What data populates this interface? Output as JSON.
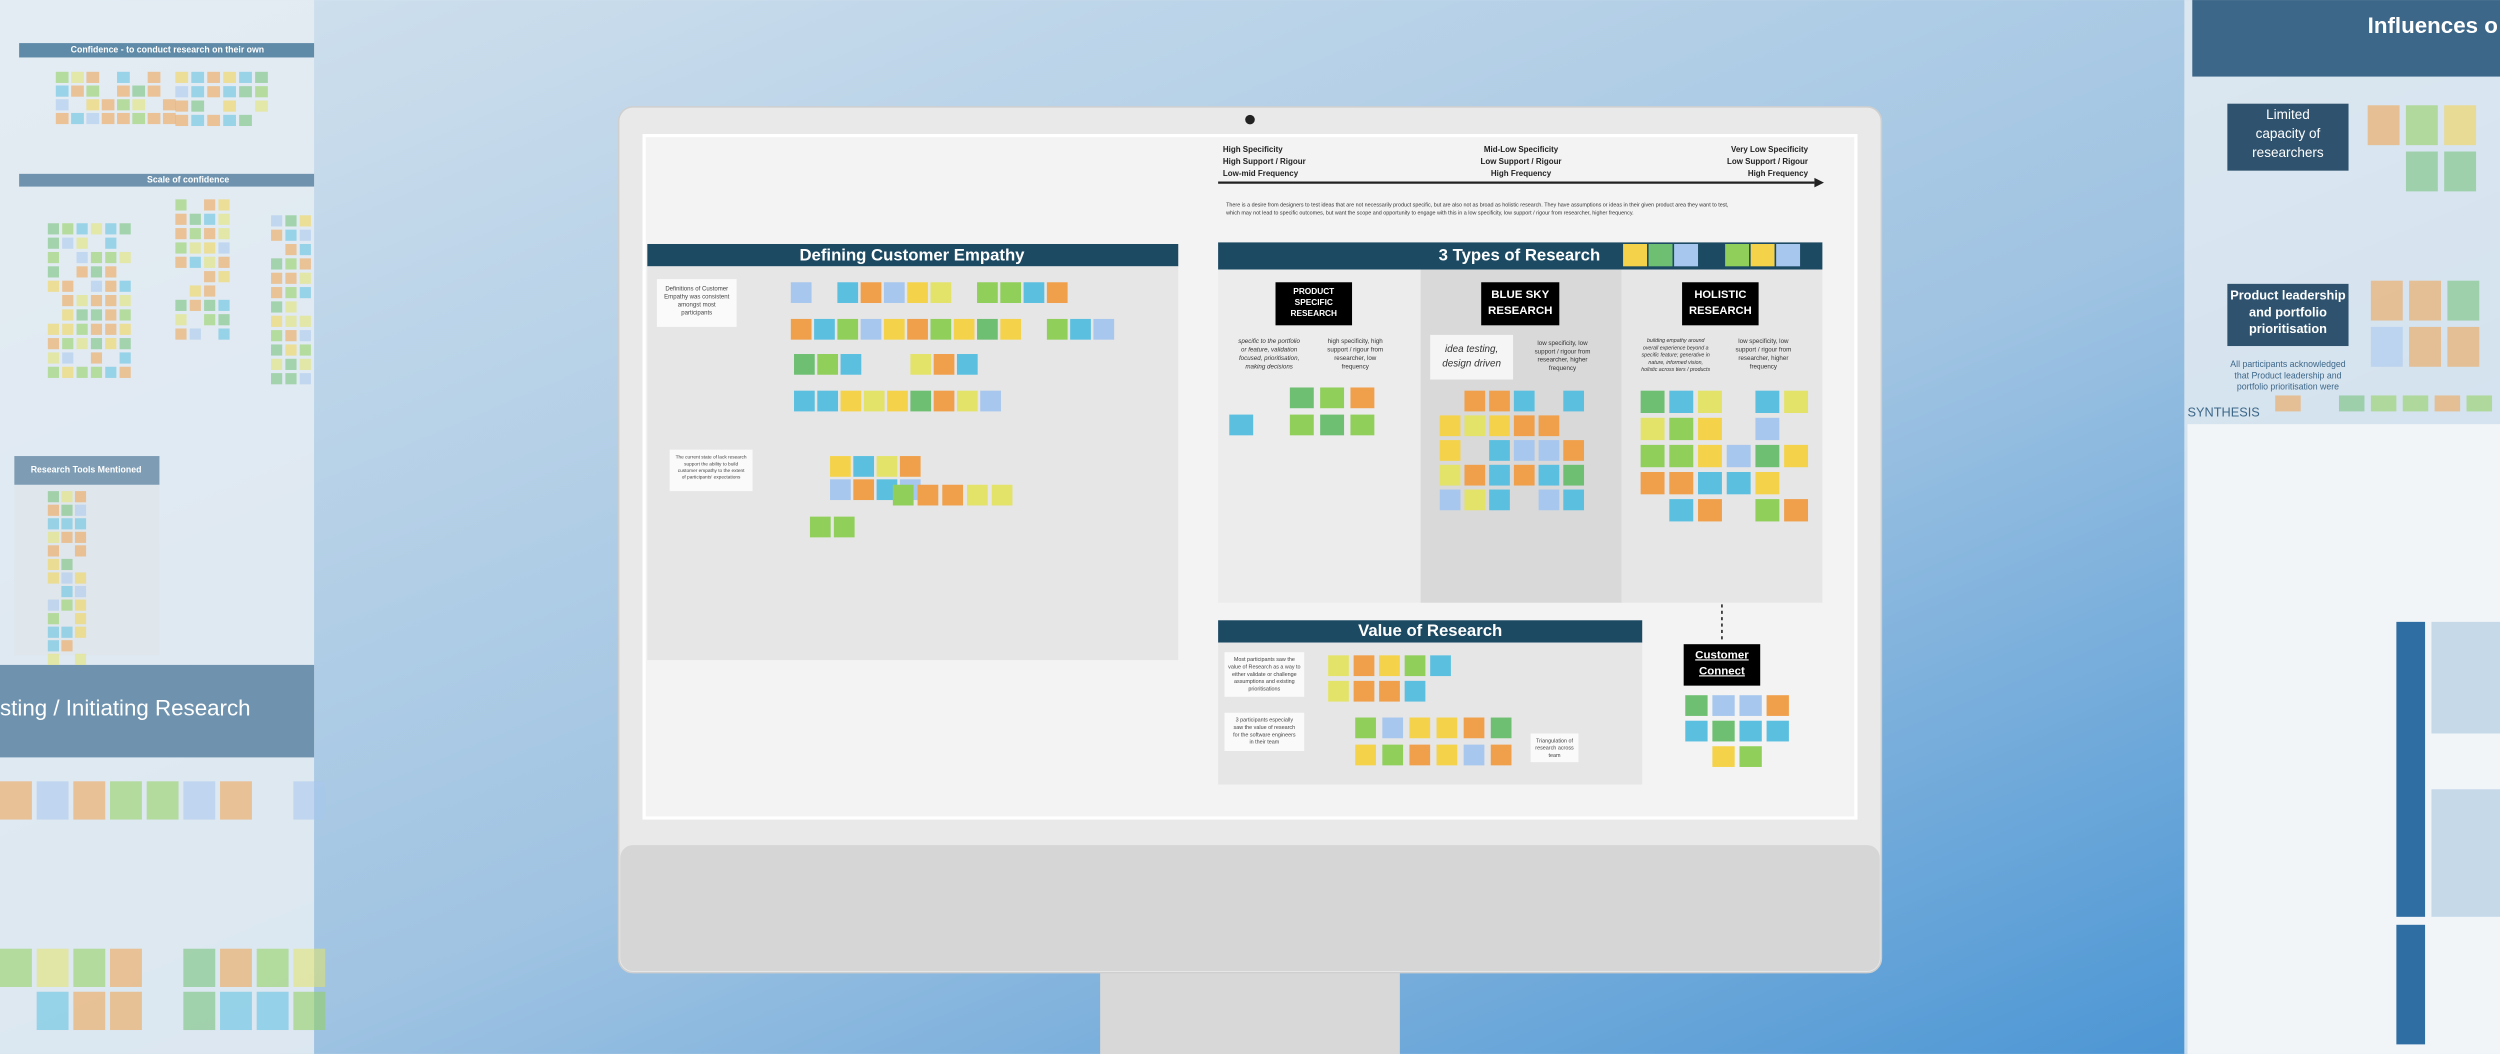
{
  "left_panel": {
    "confidence_title": "Confidence - to conduct research on their own",
    "scale_title": "Scale of confidence",
    "tools_title": "Research Tools Mentioned",
    "initiating_title": "sting / Initiating Research"
  },
  "board": {
    "spectrum": {
      "left": [
        "High Specificity",
        "High Support / Rigour",
        "Low-mid Frequency"
      ],
      "middle": [
        "Mid-Low Specificity",
        "Low Support / Rigour",
        "High Frequency"
      ],
      "right": [
        "Very Low Specificity",
        "Low Support / Rigour",
        "High Frequency"
      ]
    },
    "description": [
      "There is a desire from designers to test ideas that are not necessarily product specific, but are also not as broad as holistic research. They have assumptions or ideas in their given product area they want to test,",
      "which may not lead to specific outcomes, but want the scope and opportunity to engage with this in a low specificity, low support / rigour from researcher, higher frequency."
    ],
    "empathy": {
      "title": "Defining Customer Empathy",
      "note1": [
        "Definitions of Customer",
        "Empathy was consistent",
        "amongst most",
        "participants"
      ],
      "note2": [
        "The current state of lack research",
        "support the ability to build",
        "customer empathy to the extent",
        "of participants' expectations"
      ]
    },
    "types": {
      "title": "3 Types of Research",
      "product": {
        "label": [
          "PRODUCT",
          "SPECIFIC",
          "RESEARCH"
        ],
        "desc": [
          "specific to the portfolio",
          "or feature, validation",
          "focused, prioritisation,",
          "making decisions"
        ],
        "attrs": [
          "high specificity, high",
          "support / rigour from",
          "researcher, low",
          "frequency"
        ]
      },
      "bluesky": {
        "label": [
          "BLUE SKY",
          "RESEARCH"
        ],
        "desc": [
          "idea testing,",
          "design driven"
        ],
        "attrs": [
          "low specificity, low",
          "support / rigour from",
          "researcher, higher",
          "frequency"
        ]
      },
      "holistic": {
        "label": [
          "HOLISTIC",
          "RESEARCH"
        ],
        "desc": [
          "building empathy around",
          "overall experience beyond a",
          "specific feature; generative in",
          "nature, informed vision,",
          "holistic across tiers / products"
        ],
        "attrs": [
          "low specificity, low",
          "support / rigour from",
          "researcher, higher",
          "frequency"
        ]
      }
    },
    "value": {
      "title": "Value of Research",
      "note1": [
        "Most participants saw the",
        "value of Research as a way to",
        "either validate or challenge",
        "assumptions and existing",
        "prioritisations"
      ],
      "note2": [
        "3 participants especially",
        "saw the value of research",
        "for the software engineers",
        "in their team"
      ],
      "note3": [
        "Triangulation of",
        "research across",
        "team"
      ]
    },
    "connect": [
      "Customer",
      "Connect"
    ]
  },
  "right_panel": {
    "title": "Influences o",
    "capacity": [
      "Limited",
      "capacity of",
      "researchers"
    ],
    "leadership": [
      "Product leadership",
      "and portfolio",
      "prioritisation"
    ],
    "acknowledged": [
      "All participants acknowledged",
      "that Product leadership and",
      "portfolio prioritisation were"
    ],
    "synthesis": "SYNTHESIS"
  }
}
